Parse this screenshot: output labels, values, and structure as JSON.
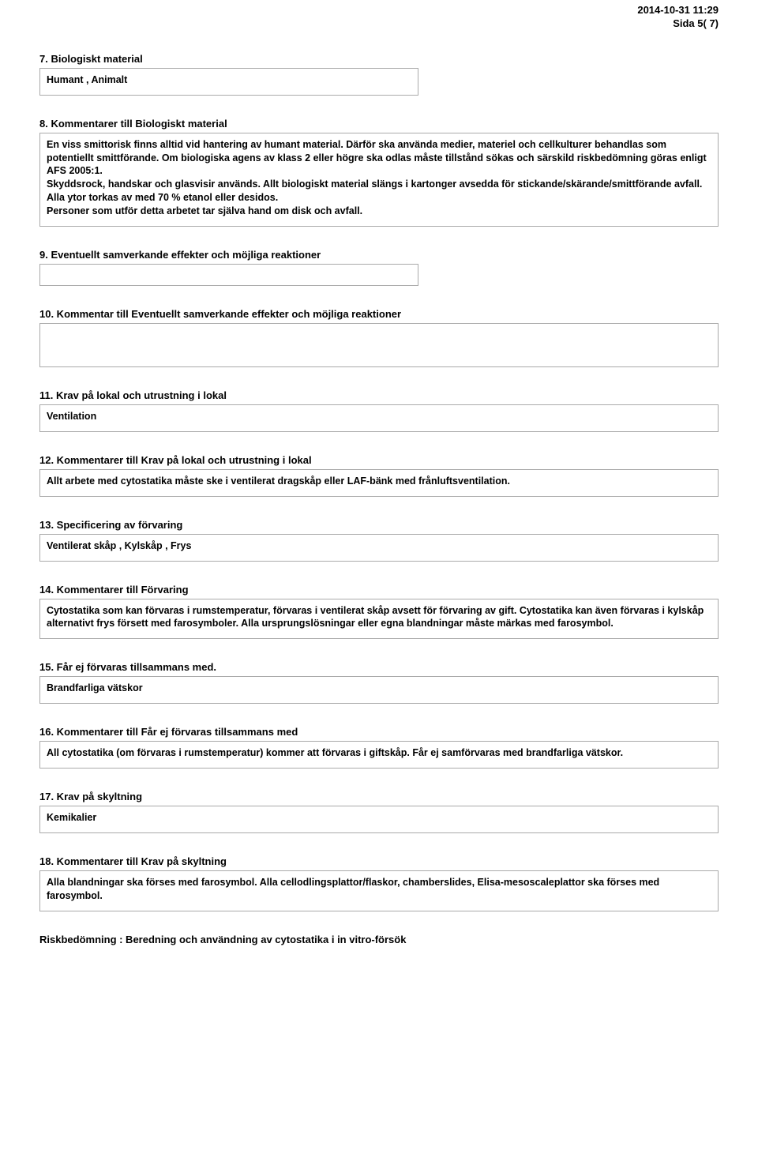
{
  "header": {
    "timestamp": "2014-10-31  11:29",
    "page_info": "Sida 5( 7)"
  },
  "sections": [
    {
      "heading": "7. Biologiskt material",
      "box_content": "Humant ,  Animalt",
      "bold": true,
      "narrow": true
    },
    {
      "heading": "8. Kommentarer till Biologiskt material",
      "box_content": "En viss smittorisk finns alltid vid hantering av humant material. Därför ska använda medier, materiel och cellkulturer behandlas som potentiellt smittförande. Om biologiska agens av klass 2 eller högre ska odlas måste tillstånd sökas och särskild riskbedömning göras enligt AFS 2005:1.\nSkyddsrock, handskar och glasvisir används. Allt biologiskt material slängs i kartonger avsedda för stickande/skärande/smittförande avfall.\nAlla ytor torkas av med 70 % etanol eller desidos.\nPersoner som utför detta arbetet tar själva hand om disk och avfall.",
      "bold": true
    },
    {
      "heading": "9. Eventuellt samverkande effekter och möjliga reaktioner",
      "box_content": "",
      "narrow": true
    },
    {
      "heading": "10. Kommentar till Eventuellt samverkande effekter och möjliga reaktioner",
      "box_content": "",
      "tall": true
    },
    {
      "heading": "11. Krav på lokal och utrustning i lokal",
      "box_content": "Ventilation",
      "bold": true
    },
    {
      "heading": "12. Kommentarer till Krav på lokal och utrustning i lokal",
      "box_content": "Allt arbete med cytostatika måste ske i ventilerat dragskåp eller LAF-bänk med frånluftsventilation.",
      "bold": true
    },
    {
      "heading": "13. Specificering av förvaring",
      "box_content": "Ventilerat skåp ,  Kylskåp ,  Frys",
      "bold": true
    },
    {
      "heading": "14. Kommentarer till Förvaring",
      "box_content": "Cytostatika som kan förvaras i rumstemperatur, förvaras i ventilerat skåp avsett för förvaring av gift. Cytostatika kan även förvaras i kylskåp alternativt frys försett med farosymboler. Alla ursprungslösningar eller egna blandningar måste märkas med farosymbol.",
      "bold": true
    },
    {
      "heading": "15. Får ej förvaras tillsammans med.",
      "box_content": "Brandfarliga vätskor",
      "bold": true
    },
    {
      "heading": "16. Kommentarer till Får ej förvaras tillsammans med",
      "box_content": "All cytostatika (om förvaras i rumstemperatur) kommer att förvaras i giftskåp. Får ej samförvaras med brandfarliga vätskor.",
      "bold": true
    },
    {
      "heading": "17. Krav på skyltning",
      "box_content": "Kemikalier",
      "bold": true
    },
    {
      "heading": "18. Kommentarer till Krav på skyltning",
      "box_content": "Alla blandningar ska förses med farosymbol. Alla cellodlingsplattor/flaskor, chamberslides, Elisa-mesoscaleplattor ska förses med farosymbol.",
      "bold": true
    }
  ],
  "footer": "Riskbedömning : Beredning och användning av cytostatika i in vitro-försök"
}
